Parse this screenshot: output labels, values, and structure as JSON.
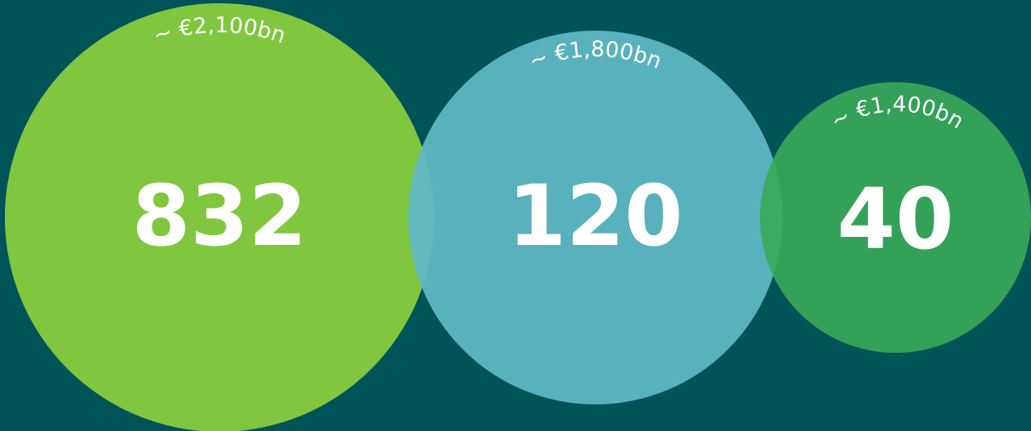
{
  "nodes": [
    {
      "count": "832",
      "amount": "~ €2,100bn"
    },
    {
      "count": "120",
      "amount": "~ €1,800bn"
    },
    {
      "count": "40",
      "amount": "~ €1,400bn"
    }
  ]
}
